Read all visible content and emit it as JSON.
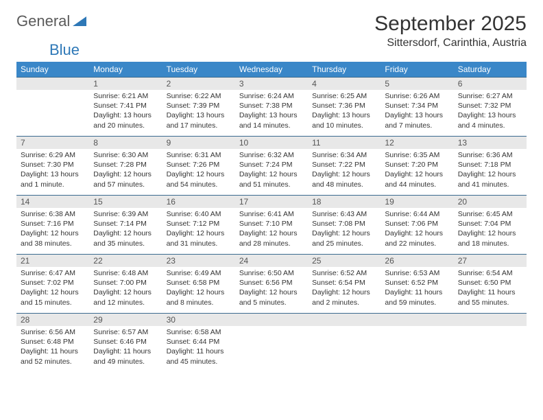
{
  "logo": {
    "general": "General",
    "blue": "Blue"
  },
  "title": "September 2025",
  "location": "Sittersdorf, Carinthia, Austria",
  "weekdays": [
    "Sunday",
    "Monday",
    "Tuesday",
    "Wednesday",
    "Thursday",
    "Friday",
    "Saturday"
  ],
  "colors": {
    "header_bg": "#3a87c8",
    "header_text": "#ffffff",
    "daynum_bg": "#e8e8e8",
    "cell_border": "#3a6a8f",
    "logo_gray": "#5a5a5a",
    "logo_blue": "#2e78b7"
  },
  "weeks": [
    [
      null,
      {
        "n": "1",
        "sunrise": "6:21 AM",
        "sunset": "7:41 PM",
        "daylight": "13 hours and 20 minutes."
      },
      {
        "n": "2",
        "sunrise": "6:22 AM",
        "sunset": "7:39 PM",
        "daylight": "13 hours and 17 minutes."
      },
      {
        "n": "3",
        "sunrise": "6:24 AM",
        "sunset": "7:38 PM",
        "daylight": "13 hours and 14 minutes."
      },
      {
        "n": "4",
        "sunrise": "6:25 AM",
        "sunset": "7:36 PM",
        "daylight": "13 hours and 10 minutes."
      },
      {
        "n": "5",
        "sunrise": "6:26 AM",
        "sunset": "7:34 PM",
        "daylight": "13 hours and 7 minutes."
      },
      {
        "n": "6",
        "sunrise": "6:27 AM",
        "sunset": "7:32 PM",
        "daylight": "13 hours and 4 minutes."
      }
    ],
    [
      {
        "n": "7",
        "sunrise": "6:29 AM",
        "sunset": "7:30 PM",
        "daylight": "13 hours and 1 minute."
      },
      {
        "n": "8",
        "sunrise": "6:30 AM",
        "sunset": "7:28 PM",
        "daylight": "12 hours and 57 minutes."
      },
      {
        "n": "9",
        "sunrise": "6:31 AM",
        "sunset": "7:26 PM",
        "daylight": "12 hours and 54 minutes."
      },
      {
        "n": "10",
        "sunrise": "6:32 AM",
        "sunset": "7:24 PM",
        "daylight": "12 hours and 51 minutes."
      },
      {
        "n": "11",
        "sunrise": "6:34 AM",
        "sunset": "7:22 PM",
        "daylight": "12 hours and 48 minutes."
      },
      {
        "n": "12",
        "sunrise": "6:35 AM",
        "sunset": "7:20 PM",
        "daylight": "12 hours and 44 minutes."
      },
      {
        "n": "13",
        "sunrise": "6:36 AM",
        "sunset": "7:18 PM",
        "daylight": "12 hours and 41 minutes."
      }
    ],
    [
      {
        "n": "14",
        "sunrise": "6:38 AM",
        "sunset": "7:16 PM",
        "daylight": "12 hours and 38 minutes."
      },
      {
        "n": "15",
        "sunrise": "6:39 AM",
        "sunset": "7:14 PM",
        "daylight": "12 hours and 35 minutes."
      },
      {
        "n": "16",
        "sunrise": "6:40 AM",
        "sunset": "7:12 PM",
        "daylight": "12 hours and 31 minutes."
      },
      {
        "n": "17",
        "sunrise": "6:41 AM",
        "sunset": "7:10 PM",
        "daylight": "12 hours and 28 minutes."
      },
      {
        "n": "18",
        "sunrise": "6:43 AM",
        "sunset": "7:08 PM",
        "daylight": "12 hours and 25 minutes."
      },
      {
        "n": "19",
        "sunrise": "6:44 AM",
        "sunset": "7:06 PM",
        "daylight": "12 hours and 22 minutes."
      },
      {
        "n": "20",
        "sunrise": "6:45 AM",
        "sunset": "7:04 PM",
        "daylight": "12 hours and 18 minutes."
      }
    ],
    [
      {
        "n": "21",
        "sunrise": "6:47 AM",
        "sunset": "7:02 PM",
        "daylight": "12 hours and 15 minutes."
      },
      {
        "n": "22",
        "sunrise": "6:48 AM",
        "sunset": "7:00 PM",
        "daylight": "12 hours and 12 minutes."
      },
      {
        "n": "23",
        "sunrise": "6:49 AM",
        "sunset": "6:58 PM",
        "daylight": "12 hours and 8 minutes."
      },
      {
        "n": "24",
        "sunrise": "6:50 AM",
        "sunset": "6:56 PM",
        "daylight": "12 hours and 5 minutes."
      },
      {
        "n": "25",
        "sunrise": "6:52 AM",
        "sunset": "6:54 PM",
        "daylight": "12 hours and 2 minutes."
      },
      {
        "n": "26",
        "sunrise": "6:53 AM",
        "sunset": "6:52 PM",
        "daylight": "11 hours and 59 minutes."
      },
      {
        "n": "27",
        "sunrise": "6:54 AM",
        "sunset": "6:50 PM",
        "daylight": "11 hours and 55 minutes."
      }
    ],
    [
      {
        "n": "28",
        "sunrise": "6:56 AM",
        "sunset": "6:48 PM",
        "daylight": "11 hours and 52 minutes."
      },
      {
        "n": "29",
        "sunrise": "6:57 AM",
        "sunset": "6:46 PM",
        "daylight": "11 hours and 49 minutes."
      },
      {
        "n": "30",
        "sunrise": "6:58 AM",
        "sunset": "6:44 PM",
        "daylight": "11 hours and 45 minutes."
      },
      null,
      null,
      null,
      null
    ]
  ],
  "labels": {
    "sunrise": "Sunrise:",
    "sunset": "Sunset:",
    "daylight": "Daylight:"
  }
}
